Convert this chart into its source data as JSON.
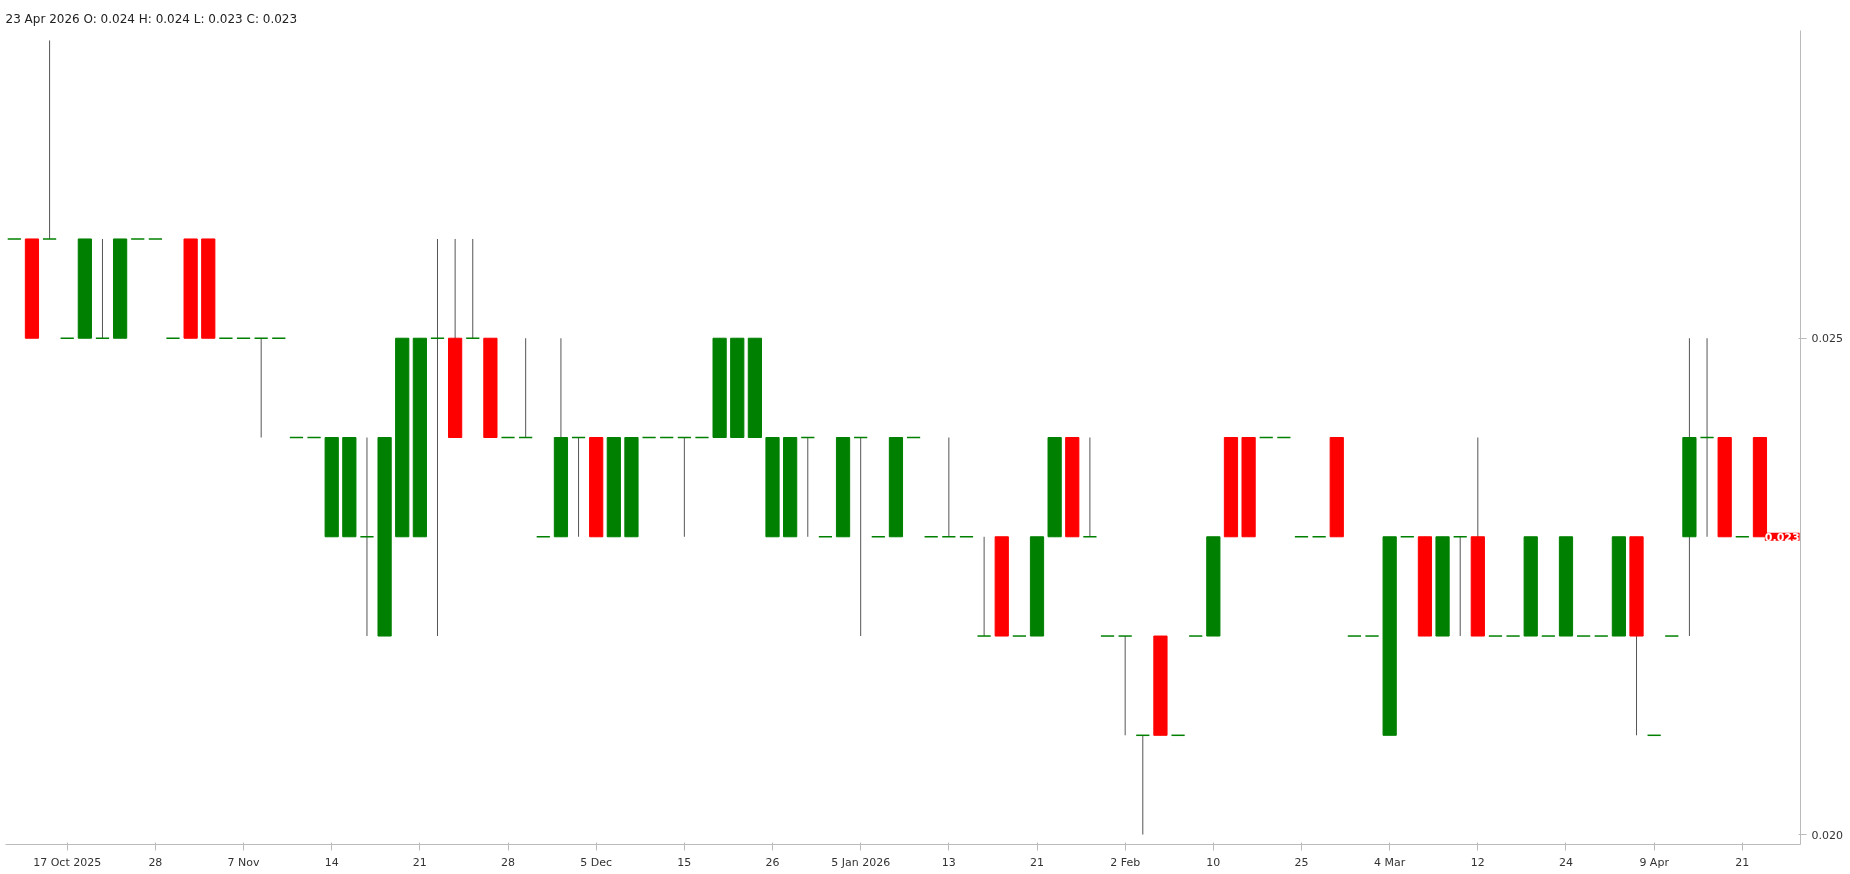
{
  "chart_data": {
    "type": "candlestick",
    "annotations": [
      "23 Apr 2026  O: 0.024  H: 0.024  L: 0.023  C: 0.023",
      "0.023"
    ],
    "categories": [
      null,
      null,
      null,
      "17 Oct 2025",
      null,
      null,
      null,
      null,
      "28",
      null,
      null,
      null,
      null,
      "7 Nov",
      null,
      null,
      null,
      null,
      "14",
      null,
      null,
      null,
      null,
      "21",
      null,
      null,
      null,
      null,
      "28",
      null,
      null,
      null,
      null,
      "5 Dec",
      null,
      null,
      null,
      null,
      "15",
      null,
      null,
      null,
      null,
      "26",
      null,
      null,
      null,
      null,
      "5 Jan 2026",
      null,
      null,
      null,
      null,
      "13",
      null,
      null,
      null,
      null,
      "21",
      null,
      null,
      null,
      null,
      "2 Feb",
      null,
      null,
      null,
      null,
      "10",
      null,
      null,
      null,
      null,
      "25",
      null,
      null,
      null,
      null,
      "4 Mar",
      null,
      null,
      null,
      null,
      "12",
      null,
      null,
      null,
      null,
      "24",
      null,
      null,
      null,
      null,
      "9 Apr",
      null,
      null,
      null,
      null,
      "21",
      null
    ],
    "ohlc": [
      [
        0.026,
        0.026,
        0.026,
        0.026
      ],
      [
        0.026,
        0.026,
        0.025,
        0.025
      ],
      [
        0.026,
        0.028,
        0.026,
        0.026
      ],
      [
        0.025,
        0.025,
        0.025,
        0.025
      ],
      [
        0.025,
        0.026,
        0.025,
        0.026
      ],
      [
        0.025,
        0.026,
        0.025,
        0.025
      ],
      [
        0.025,
        0.026,
        0.025,
        0.026
      ],
      [
        0.026,
        0.026,
        0.026,
        0.026
      ],
      [
        0.026,
        0.026,
        0.026,
        0.026
      ],
      [
        0.025,
        0.025,
        0.025,
        0.025
      ],
      [
        0.026,
        0.026,
        0.025,
        0.025
      ],
      [
        0.026,
        0.026,
        0.025,
        0.025
      ],
      [
        0.025,
        0.025,
        0.025,
        0.025
      ],
      [
        0.025,
        0.025,
        0.025,
        0.025
      ],
      [
        0.025,
        0.025,
        0.024,
        0.025
      ],
      [
        0.025,
        0.025,
        0.025,
        0.025
      ],
      [
        0.024,
        0.024,
        0.024,
        0.024
      ],
      [
        0.024,
        0.024,
        0.024,
        0.024
      ],
      [
        0.023,
        0.024,
        0.023,
        0.024
      ],
      [
        0.023,
        0.024,
        0.023,
        0.024
      ],
      [
        0.023,
        0.024,
        0.022,
        0.023
      ],
      [
        0.022,
        0.024,
        0.022,
        0.024
      ],
      [
        0.023,
        0.025,
        0.023,
        0.025
      ],
      [
        0.023,
        0.025,
        0.023,
        0.025
      ],
      [
        0.025,
        0.026,
        0.022,
        0.025
      ],
      [
        0.025,
        0.026,
        0.024,
        0.024
      ],
      [
        0.025,
        0.026,
        0.025,
        0.025
      ],
      [
        0.025,
        0.025,
        0.024,
        0.024
      ],
      [
        0.024,
        0.024,
        0.024,
        0.024
      ],
      [
        0.024,
        0.025,
        0.024,
        0.024
      ],
      [
        0.023,
        0.023,
        0.023,
        0.023
      ],
      [
        0.023,
        0.025,
        0.023,
        0.024
      ],
      [
        0.024,
        0.024,
        0.023,
        0.024
      ],
      [
        0.024,
        0.024,
        0.023,
        0.023
      ],
      [
        0.023,
        0.024,
        0.023,
        0.024
      ],
      [
        0.023,
        0.024,
        0.023,
        0.024
      ],
      [
        0.024,
        0.024,
        0.024,
        0.024
      ],
      [
        0.024,
        0.024,
        0.024,
        0.024
      ],
      [
        0.024,
        0.024,
        0.023,
        0.024
      ],
      [
        0.024,
        0.024,
        0.024,
        0.024
      ],
      [
        0.024,
        0.025,
        0.024,
        0.025
      ],
      [
        0.024,
        0.025,
        0.024,
        0.025
      ],
      [
        0.024,
        0.025,
        0.024,
        0.025
      ],
      [
        0.023,
        0.024,
        0.023,
        0.024
      ],
      [
        0.023,
        0.024,
        0.023,
        0.024
      ],
      [
        0.024,
        0.024,
        0.023,
        0.024
      ],
      [
        0.023,
        0.023,
        0.023,
        0.023
      ],
      [
        0.023,
        0.024,
        0.023,
        0.024
      ],
      [
        0.024,
        0.024,
        0.022,
        0.024
      ],
      [
        0.023,
        0.023,
        0.023,
        0.023
      ],
      [
        0.023,
        0.024,
        0.023,
        0.024
      ],
      [
        0.024,
        0.024,
        0.024,
        0.024
      ],
      [
        0.023,
        0.023,
        0.023,
        0.023
      ],
      [
        0.023,
        0.024,
        0.023,
        0.023
      ],
      [
        0.023,
        0.023,
        0.023,
        0.023
      ],
      [
        0.022,
        0.023,
        0.022,
        0.022
      ],
      [
        0.023,
        0.023,
        0.022,
        0.022
      ],
      [
        0.022,
        0.022,
        0.022,
        0.022
      ],
      [
        0.022,
        0.023,
        0.022,
        0.023
      ],
      [
        0.023,
        0.024,
        0.023,
        0.024
      ],
      [
        0.024,
        0.024,
        0.023,
        0.023
      ],
      [
        0.023,
        0.024,
        0.023,
        0.023
      ],
      [
        0.022,
        0.022,
        0.022,
        0.022
      ],
      [
        0.022,
        0.022,
        0.021,
        0.022
      ],
      [
        0.021,
        0.021,
        0.02,
        0.021
      ],
      [
        0.022,
        0.022,
        0.021,
        0.021
      ],
      [
        0.021,
        0.021,
        0.021,
        0.021
      ],
      [
        0.022,
        0.022,
        0.022,
        0.022
      ],
      [
        0.022,
        0.023,
        0.022,
        0.023
      ],
      [
        0.024,
        0.024,
        0.023,
        0.023
      ],
      [
        0.024,
        0.024,
        0.023,
        0.023
      ],
      [
        0.024,
        0.024,
        0.024,
        0.024
      ],
      [
        0.024,
        0.024,
        0.024,
        0.024
      ],
      [
        0.023,
        0.023,
        0.023,
        0.023
      ],
      [
        0.023,
        0.023,
        0.023,
        0.023
      ],
      [
        0.024,
        0.024,
        0.023,
        0.023
      ],
      [
        0.022,
        0.022,
        0.022,
        0.022
      ],
      [
        0.022,
        0.022,
        0.022,
        0.022
      ],
      [
        0.021,
        0.023,
        0.021,
        0.023
      ],
      [
        0.023,
        0.023,
        0.023,
        0.023
      ],
      [
        0.023,
        0.023,
        0.022,
        0.022
      ],
      [
        0.022,
        0.023,
        0.022,
        0.023
      ],
      [
        0.023,
        0.023,
        0.022,
        0.023
      ],
      [
        0.023,
        0.024,
        0.022,
        0.022
      ],
      [
        0.022,
        0.022,
        0.022,
        0.022
      ],
      [
        0.022,
        0.022,
        0.022,
        0.022
      ],
      [
        0.022,
        0.023,
        0.022,
        0.023
      ],
      [
        0.022,
        0.022,
        0.022,
        0.022
      ],
      [
        0.022,
        0.023,
        0.022,
        0.023
      ],
      [
        0.022,
        0.022,
        0.022,
        0.022
      ],
      [
        0.022,
        0.022,
        0.022,
        0.022
      ],
      [
        0.022,
        0.023,
        0.022,
        0.023
      ],
      [
        0.023,
        0.023,
        0.021,
        0.022
      ],
      [
        0.021,
        0.021,
        0.021,
        0.021
      ],
      [
        0.022,
        0.022,
        0.022,
        0.022
      ],
      [
        0.023,
        0.025,
        0.022,
        0.024
      ],
      [
        0.024,
        0.025,
        0.023,
        0.024
      ],
      [
        0.024,
        0.024,
        0.023,
        0.023
      ],
      [
        0.023,
        0.023,
        0.023,
        0.023
      ],
      [
        0.024,
        0.024,
        0.023,
        0.023
      ]
    ],
    "colors": [
      "#008000",
      "#ff0000",
      "#008000",
      "#008000",
      "#008000",
      "#008000",
      "#008000",
      "#008000",
      "#008000",
      "#008000",
      "#ff0000",
      "#ff0000",
      "#008000",
      "#008000",
      "#008000",
      "#008000",
      "#008000",
      "#008000",
      "#008000",
      "#008000",
      "#008000",
      "#008000",
      "#008000",
      "#008000",
      "#008000",
      "#ff0000",
      "#008000",
      "#ff0000",
      "#008000",
      "#008000",
      "#008000",
      "#008000",
      "#008000",
      "#ff0000",
      "#008000",
      "#008000",
      "#008000",
      "#008000",
      "#008000",
      "#008000",
      "#008000",
      "#008000",
      "#008000",
      "#008000",
      "#008000",
      "#008000",
      "#008000",
      "#008000",
      "#008000",
      "#008000",
      "#008000",
      "#008000",
      "#008000",
      "#008000",
      "#008000",
      "#008000",
      "#ff0000",
      "#008000",
      "#008000",
      "#008000",
      "#ff0000",
      "#008000",
      "#008000",
      "#008000",
      "#008000",
      "#ff0000",
      "#008000",
      "#008000",
      "#008000",
      "#ff0000",
      "#ff0000",
      "#008000",
      "#008000",
      "#008000",
      "#008000",
      "#ff0000",
      "#008000",
      "#008000",
      "#008000",
      "#008000",
      "#ff0000",
      "#008000",
      "#008000",
      "#ff0000",
      "#008000",
      "#008000",
      "#008000",
      "#008000",
      "#008000",
      "#008000",
      "#008000",
      "#008000",
      "#ff0000",
      "#008000",
      "#008000",
      "#008000",
      "#008000",
      "#ff0000",
      "#008000",
      "#ff0000"
    ],
    "ylim": [
      0.0199,
      0.0281
    ],
    "yticks": [
      0.025,
      {
        "value": 0.02,
        "label": "0.020"
      }
    ],
    "grid": false
  }
}
